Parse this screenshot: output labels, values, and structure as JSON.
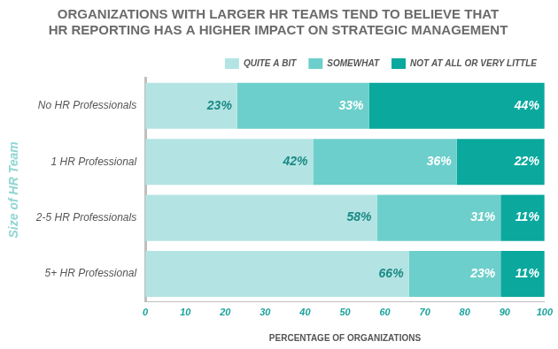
{
  "chart_data": {
    "type": "bar",
    "title": "ORGANIZATIONS WITH LARGER HR TEAMS TEND TO BELIEVE THAT HR REPORTING HAS A HIGHER IMPACT ON STRATEGIC MANAGEMENT",
    "x_label": "PERCENTAGE OF ORGANIZATIONS",
    "y_label": "Size of HR Team",
    "categories": [
      "No HR Professionals",
      "1 HR Professional",
      "2-5 HR Professionals",
      "5+ HR Professional"
    ],
    "series": [
      {
        "name": "QUITE A BIT",
        "color": "#b3e4e3",
        "values": [
          23,
          42,
          58,
          66
        ],
        "value_labels": [
          "23%",
          "42%",
          "58%",
          "66%"
        ]
      },
      {
        "name": "SOMEWHAT",
        "color": "#6dcfcb",
        "values": [
          33,
          36,
          31,
          23
        ],
        "value_labels": [
          "33%",
          "36%",
          "31%",
          "23%"
        ]
      },
      {
        "name": "NOT AT ALL OR VERY LITTLE",
        "color": "#0ba89e",
        "values": [
          44,
          22,
          11,
          11
        ],
        "value_labels": [
          "44%",
          "22%",
          "11%",
          "11%"
        ]
      }
    ],
    "xlim": [
      0,
      100
    ],
    "xticks": [
      0,
      10,
      20,
      30,
      40,
      50,
      60,
      70,
      80,
      90,
      100
    ],
    "orientation": "horizontal",
    "stacked": true,
    "data_labels": true,
    "legend": "top",
    "grid": false
  }
}
